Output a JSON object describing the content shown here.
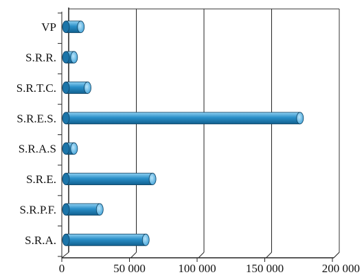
{
  "chart_data": {
    "type": "bar",
    "orientation": "horizontal",
    "style": "3d-cylinder",
    "categories": [
      "VP",
      "S.R.R.",
      "S.R.T.C.",
      "S.R.E.S.",
      "S.R.A.S",
      "S.R.E.",
      "S.R.P.F.",
      "S.R.A."
    ],
    "values": [
      10000,
      5000,
      15000,
      172000,
      5000,
      63000,
      24000,
      58000
    ],
    "xlim": [
      0,
      200000
    ],
    "xticks": [
      0,
      50000,
      100000,
      150000,
      200000
    ],
    "xtick_labels": [
      "0",
      "50 000",
      "100 000",
      "150 000",
      "200 000"
    ],
    "title": "",
    "xlabel": "",
    "ylabel": "",
    "grid": "vertical",
    "legend": "none",
    "bar_color": "#2a8fc8"
  }
}
